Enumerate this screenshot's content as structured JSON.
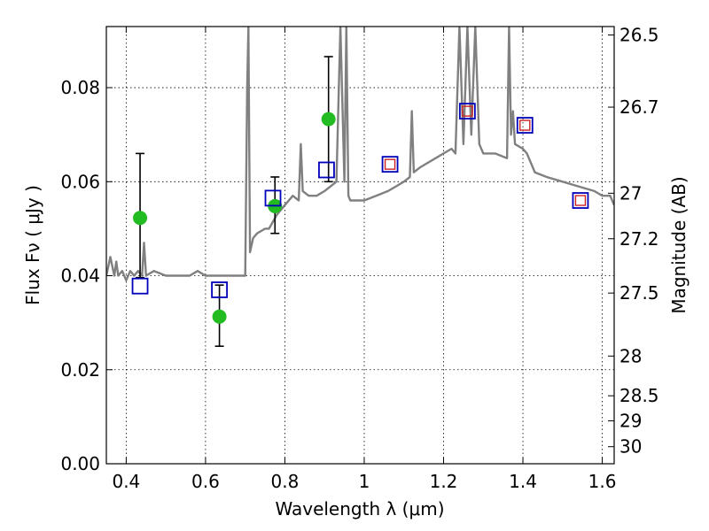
{
  "chart_data": {
    "type": "scatter",
    "title": "",
    "xlabel": "Wavelength  λ (μm)",
    "ylabel": "Flux  Fν ( μJy )",
    "ylabel_right": "Magnitude (AB)",
    "xlim": [
      0.35,
      1.63
    ],
    "ylim": [
      0.0,
      0.093
    ],
    "grid": true,
    "x_ticks": [
      0.4,
      0.6,
      0.8,
      1.0,
      1.2,
      1.4,
      1.6
    ],
    "x_tick_labels": [
      "0.4",
      "0.6",
      "0.8",
      "1",
      "1.2",
      "1.4",
      "1.6"
    ],
    "y_ticks": [
      0.0,
      0.02,
      0.04,
      0.06,
      0.08
    ],
    "y_tick_labels": [
      "0.00",
      "0.02",
      "0.04",
      "0.06",
      "0.08"
    ],
    "right_ticks": [
      {
        "label": "26.5",
        "mag": 26.5
      },
      {
        "label": "26.7",
        "mag": 26.7
      },
      {
        "label": "27",
        "mag": 27.0
      },
      {
        "label": "27.2",
        "mag": 27.2
      },
      {
        "label": "27.5",
        "mag": 27.5
      },
      {
        "label": "28",
        "mag": 28.0
      },
      {
        "label": "28.5",
        "mag": 28.5
      },
      {
        "label": "29",
        "mag": 29.0
      },
      {
        "label": "30",
        "mag": 30.0
      }
    ],
    "series": [
      {
        "kind": "line",
        "color": "#808080",
        "x": [
          0.35,
          0.36,
          0.37,
          0.375,
          0.38,
          0.39,
          0.4,
          0.41,
          0.42,
          0.43,
          0.44,
          0.445,
          0.45,
          0.47,
          0.5,
          0.53,
          0.56,
          0.58,
          0.6,
          0.62,
          0.65,
          0.68,
          0.7,
          0.705,
          0.708,
          0.712,
          0.72,
          0.73,
          0.75,
          0.76,
          0.78,
          0.8,
          0.82,
          0.835,
          0.84,
          0.845,
          0.86,
          0.88,
          0.9,
          0.93,
          0.94,
          0.95,
          0.955,
          0.96,
          0.965,
          0.97,
          1.0,
          1.03,
          1.06,
          1.08,
          1.1,
          1.115,
          1.12,
          1.125,
          1.14,
          1.16,
          1.18,
          1.2,
          1.22,
          1.23,
          1.24,
          1.25,
          1.26,
          1.27,
          1.28,
          1.29,
          1.3,
          1.33,
          1.36,
          1.365,
          1.37,
          1.375,
          1.38,
          1.4,
          1.41,
          1.43,
          1.46,
          1.5,
          1.54,
          1.58,
          1.6,
          1.62,
          1.63
        ],
        "y": [
          0.04,
          0.044,
          0.04,
          0.043,
          0.04,
          0.041,
          0.039,
          0.041,
          0.04,
          0.041,
          0.04,
          0.047,
          0.04,
          0.041,
          0.04,
          0.04,
          0.04,
          0.041,
          0.04,
          0.04,
          0.04,
          0.04,
          0.04,
          0.08,
          0.093,
          0.045,
          0.048,
          0.049,
          0.05,
          0.05,
          0.053,
          0.055,
          0.057,
          0.056,
          0.068,
          0.058,
          0.057,
          0.057,
          0.058,
          0.06,
          0.093,
          0.06,
          0.093,
          0.057,
          0.056,
          0.056,
          0.056,
          0.057,
          0.058,
          0.059,
          0.06,
          0.061,
          0.075,
          0.062,
          0.063,
          0.064,
          0.065,
          0.066,
          0.067,
          0.066,
          0.093,
          0.068,
          0.093,
          0.07,
          0.093,
          0.068,
          0.066,
          0.066,
          0.065,
          0.093,
          0.07,
          0.075,
          0.068,
          0.067,
          0.066,
          0.062,
          0.061,
          0.06,
          0.059,
          0.058,
          0.057,
          0.057,
          0.055
        ]
      },
      {
        "kind": "points",
        "marker": "circle",
        "color": "#22bb22",
        "x": [
          0.435,
          0.635,
          0.775,
          0.91
        ],
        "y": [
          0.0523,
          0.0313,
          0.0548,
          0.0733
        ],
        "yerr_low": [
          0.0127,
          0.0063,
          0.0058,
          0.0133
        ],
        "yerr_high": [
          0.0137,
          0.0067,
          0.0062,
          0.0133
        ]
      },
      {
        "kind": "points",
        "marker": "open-square",
        "color": "#0000bb",
        "x": [
          0.435,
          0.635,
          0.77,
          0.905,
          1.065,
          1.26,
          1.405,
          1.545
        ],
        "y": [
          0.0378,
          0.037,
          0.0565,
          0.0625,
          0.0637,
          0.075,
          0.072,
          0.056
        ]
      },
      {
        "kind": "points",
        "marker": "open-square",
        "color": "#cc2222",
        "x": [
          1.065,
          1.26,
          1.405,
          1.545
        ],
        "y": [
          0.0637,
          0.075,
          0.072,
          0.056
        ]
      }
    ]
  }
}
